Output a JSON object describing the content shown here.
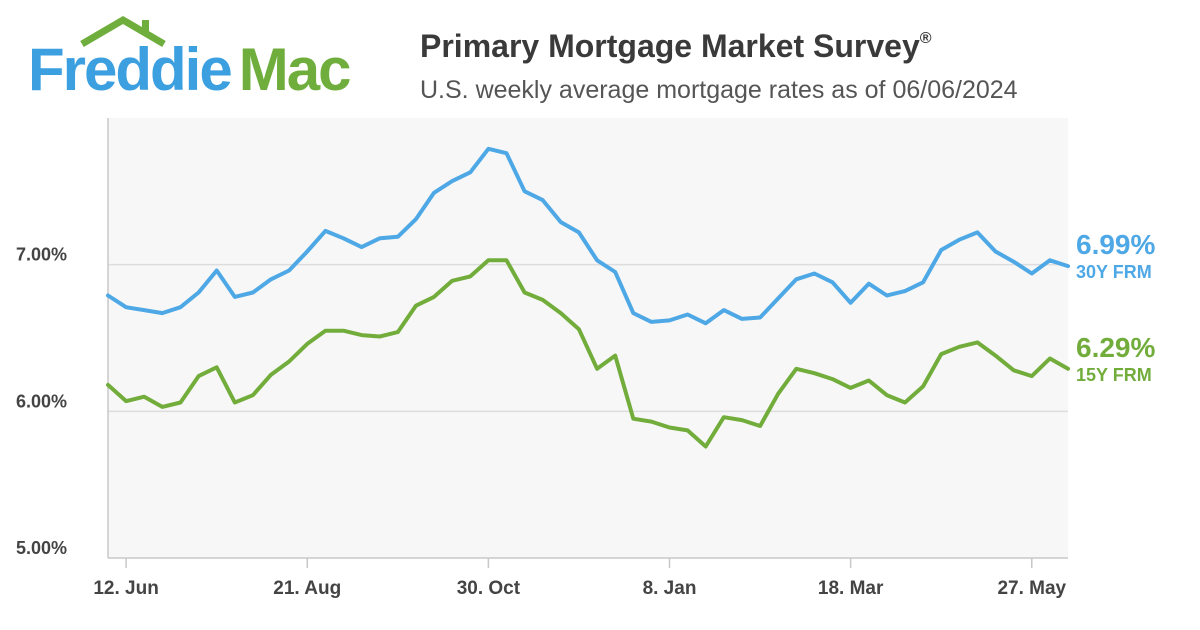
{
  "logo": {
    "part1": "Freddie",
    "part2": "Mac",
    "roof_color": "#6fae3c",
    "freddie_color": "#3b9fe0",
    "mac_color": "#6fae3c"
  },
  "header": {
    "title": "Primary Mortgage Market Survey",
    "title_mark": "®",
    "subtitle": "U.S. weekly average mortgage rates as of 06/06/2024"
  },
  "chart_data": {
    "type": "line",
    "title": "Primary Mortgage Market Survey®",
    "subtitle": "U.S. weekly average mortgage rates as of 06/06/2024",
    "xlabel": "",
    "ylabel": "",
    "ylim": [
      5.0,
      8.0
    ],
    "yticks": [
      5.0,
      6.0,
      7.0
    ],
    "ytick_labels": [
      "5.00%",
      "6.00%",
      "7.00%"
    ],
    "xtick_labels": [
      {
        "label": "12. Jun",
        "index": 1
      },
      {
        "label": "21. Aug",
        "index": 11
      },
      {
        "label": "30. Oct",
        "index": 21
      },
      {
        "label": "8. Jan",
        "index": 31
      },
      {
        "label": "18. Mar",
        "index": 41
      },
      {
        "label": "27. May",
        "index": 51
      }
    ],
    "grid": true,
    "series": [
      {
        "name": "30Y FRM",
        "color": "#4ea8e6",
        "end_label": "6.99%",
        "values": [
          6.79,
          6.71,
          6.69,
          6.67,
          6.71,
          6.81,
          6.96,
          6.78,
          6.81,
          6.9,
          6.96,
          7.09,
          7.23,
          7.18,
          7.12,
          7.18,
          7.19,
          7.31,
          7.49,
          7.57,
          7.63,
          7.79,
          7.76,
          7.5,
          7.44,
          7.29,
          7.22,
          7.03,
          6.95,
          6.67,
          6.61,
          6.62,
          6.66,
          6.6,
          6.69,
          6.63,
          6.64,
          6.77,
          6.9,
          6.94,
          6.88,
          6.74,
          6.87,
          6.79,
          6.82,
          6.88,
          7.1,
          7.17,
          7.22,
          7.09,
          7.02,
          6.94,
          7.03,
          6.99
        ]
      },
      {
        "name": "15Y FRM",
        "color": "#72ad3c",
        "end_label": "6.29%",
        "values": [
          6.18,
          6.07,
          6.1,
          6.03,
          6.06,
          6.24,
          6.3,
          6.06,
          6.11,
          6.25,
          6.34,
          6.46,
          6.55,
          6.55,
          6.52,
          6.51,
          6.54,
          6.72,
          6.78,
          6.89,
          6.92,
          7.03,
          7.03,
          6.81,
          6.76,
          6.67,
          6.56,
          6.29,
          6.38,
          5.95,
          5.93,
          5.89,
          5.87,
          5.76,
          5.96,
          5.94,
          5.9,
          6.12,
          6.29,
          6.26,
          6.22,
          6.16,
          6.21,
          6.11,
          6.06,
          6.17,
          6.39,
          6.44,
          6.47,
          6.38,
          6.28,
          6.24,
          6.36,
          6.29
        ]
      }
    ]
  }
}
